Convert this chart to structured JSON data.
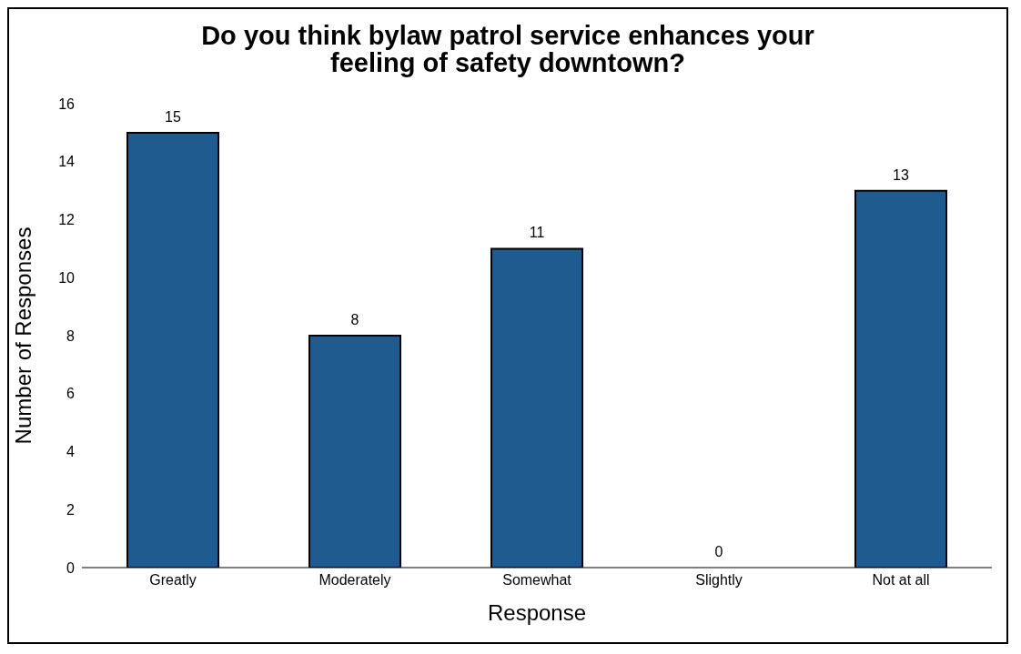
{
  "chart_data": {
    "type": "bar",
    "title": "Do you think bylaw patrol service enhances your\nfeeling of safety downtown?",
    "xlabel": "Response",
    "ylabel": "Number of Responses",
    "categories": [
      "Greatly",
      "Moderately",
      "Somewhat",
      "Slightly",
      "Not at all"
    ],
    "values": [
      15,
      8,
      11,
      0,
      13
    ],
    "color": "#1f5b8e",
    "ylim": [
      0,
      16
    ],
    "yticks": [
      0,
      2,
      4,
      6,
      8,
      10,
      12,
      14,
      16
    ],
    "grid": false,
    "data_labels": true
  }
}
